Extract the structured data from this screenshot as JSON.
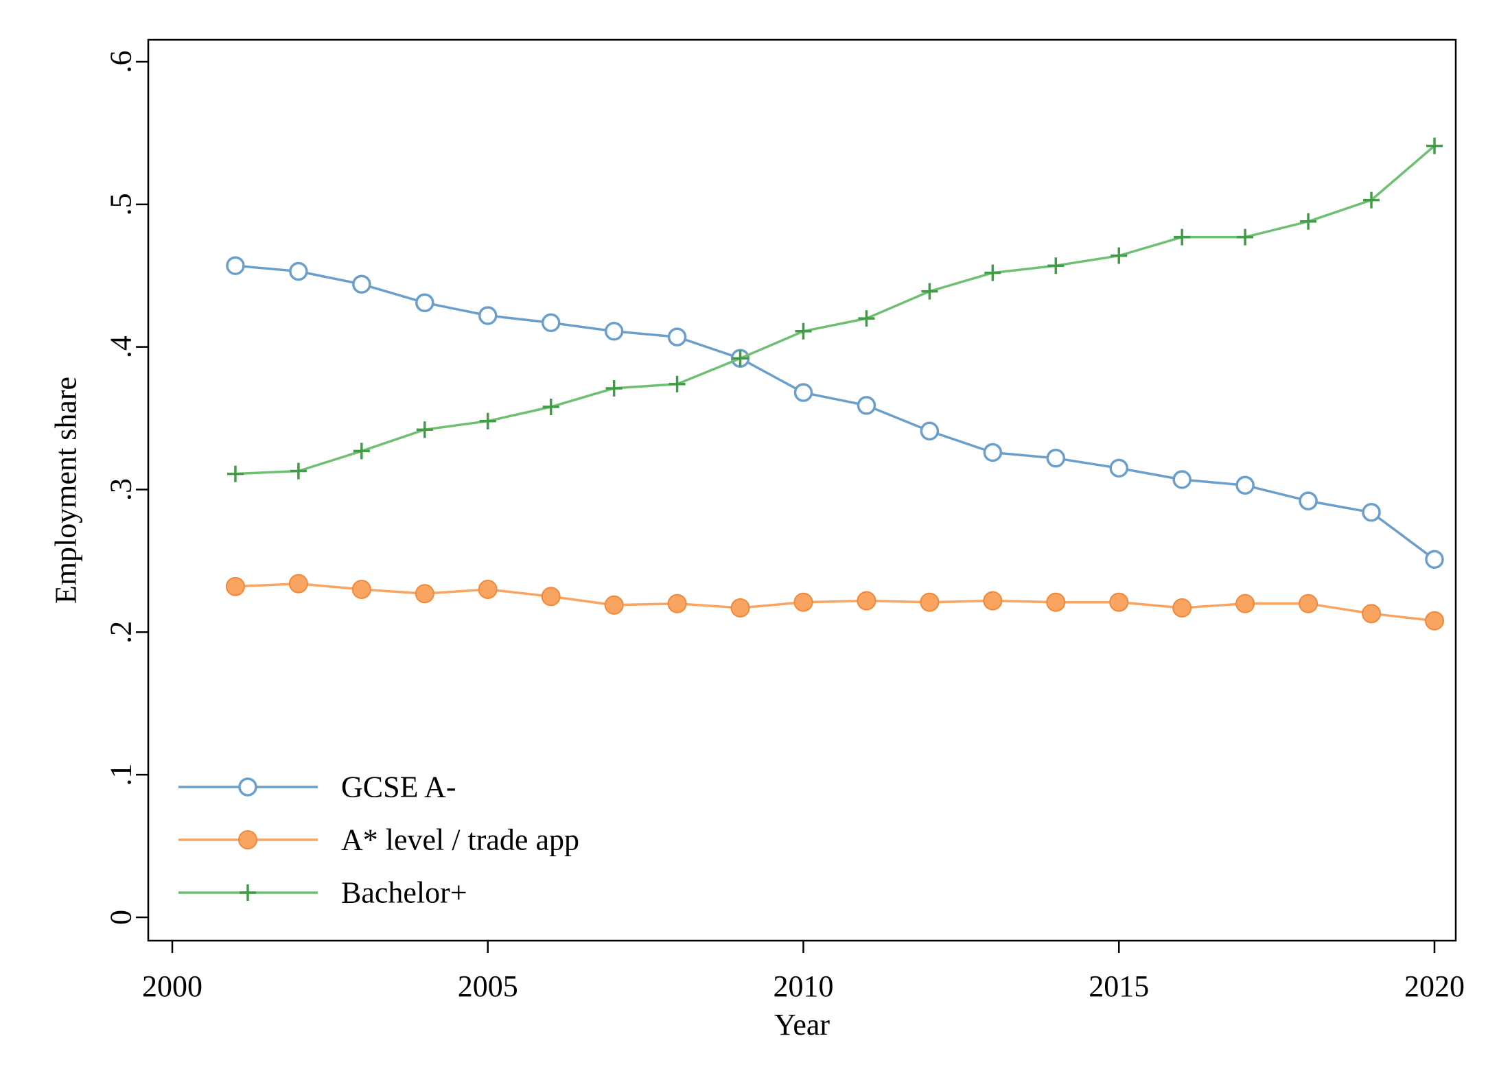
{
  "chart_data": {
    "type": "line",
    "title": "",
    "xlabel": "Year",
    "ylabel": "Employment share",
    "xlim": [
      2000,
      2020
    ],
    "ylim": [
      0,
      0.6
    ],
    "x_ticks": [
      2000,
      2005,
      2010,
      2015,
      2020
    ],
    "x_tick_labels": [
      "2000",
      "2005",
      "2010",
      "2015",
      "2020"
    ],
    "y_ticks": [
      0,
      0.1,
      0.2,
      0.3,
      0.4,
      0.5,
      0.6
    ],
    "y_tick_labels": [
      "0",
      ".1",
      ".2",
      ".3",
      ".4",
      ".5",
      ".6"
    ],
    "grid": false,
    "legend_position": "bottom-left",
    "x": [
      2001,
      2002,
      2003,
      2004,
      2005,
      2006,
      2007,
      2008,
      2009,
      2010,
      2011,
      2012,
      2013,
      2014,
      2015,
      2016,
      2017,
      2018,
      2019,
      2020
    ],
    "series": [
      {
        "name": "GCSE A-",
        "color": "#6a9fcb",
        "marker": "hollow-circle",
        "values": [
          0.457,
          0.453,
          0.444,
          0.431,
          0.422,
          0.417,
          0.411,
          0.407,
          0.392,
          0.368,
          0.359,
          0.341,
          0.326,
          0.322,
          0.315,
          0.307,
          0.303,
          0.292,
          0.284,
          0.251
        ]
      },
      {
        "name": "A* level / trade app",
        "color": "#f9a460",
        "marker": "filled-circle",
        "values": [
          0.232,
          0.234,
          0.23,
          0.227,
          0.23,
          0.225,
          0.219,
          0.22,
          0.217,
          0.221,
          0.222,
          0.221,
          0.222,
          0.221,
          0.221,
          0.217,
          0.22,
          0.22,
          0.213,
          0.208
        ]
      },
      {
        "name": "Bachelor+",
        "color": "#6fbf72",
        "marker": "plus",
        "values": [
          0.311,
          0.313,
          0.327,
          0.342,
          0.348,
          0.358,
          0.371,
          0.374,
          0.392,
          0.411,
          0.42,
          0.439,
          0.452,
          0.457,
          0.464,
          0.477,
          0.477,
          0.488,
          0.503,
          0.541
        ]
      }
    ]
  }
}
